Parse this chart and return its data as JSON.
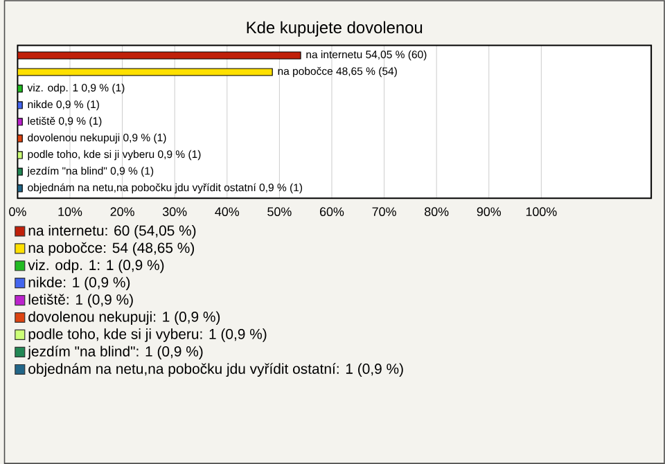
{
  "chart_data": {
    "type": "bar",
    "orientation": "horizontal",
    "title": "Kde kupujete dovolenou",
    "categories": [
      null,
      null,
      null,
      null,
      null,
      null,
      null,
      null,
      null
    ],
    "xlim": [
      0,
      121
    ],
    "xticks": [
      {
        "value": 0,
        "label": "0%"
      },
      {
        "value": 10,
        "label": "10%"
      },
      {
        "value": 20,
        "label": "20%"
      },
      {
        "value": 30,
        "label": "30%"
      },
      {
        "value": 40,
        "label": "40%"
      },
      {
        "value": 50,
        "label": "50%"
      },
      {
        "value": 60,
        "label": "60%"
      },
      {
        "value": 70,
        "label": "70%"
      },
      {
        "value": 80,
        "label": "80%"
      },
      {
        "value": 90,
        "label": "90%"
      },
      {
        "value": 100,
        "label": "100%"
      }
    ],
    "grid": "x",
    "legend": "bottom",
    "tick_labels": "x",
    "series": [
      {
        "name": "na internetu: 60 (54,05 %)",
        "color": "#c0200a",
        "values": [
          54.05,
          null,
          null,
          null,
          null,
          null,
          null,
          null,
          null
        ],
        "value_labels": [
          "na internetu 54,05 % (60)",
          null,
          null,
          null,
          null,
          null,
          null,
          null,
          null
        ]
      },
      {
        "name": "na pobočce: 54 (48,65 %)",
        "color": "#ffe000",
        "values": [
          null,
          48.65,
          null,
          null,
          null,
          null,
          null,
          null,
          null
        ],
        "value_labels": [
          null,
          "na pobočce 48,65 % (54)",
          null,
          null,
          null,
          null,
          null,
          null,
          null
        ]
      },
      {
        "name": "viz. odp. 1: 1 (0,9 %)",
        "color": "#22bb22",
        "values": [
          null,
          null,
          0.9,
          null,
          null,
          null,
          null,
          null,
          null
        ],
        "value_labels": [
          null,
          null,
          "viz. odp. 1 0,9 % (1)",
          null,
          null,
          null,
          null,
          null,
          null
        ]
      },
      {
        "name": "nikde: 1 (0,9 %)",
        "color": "#4466ee",
        "values": [
          null,
          null,
          null,
          0.9,
          null,
          null,
          null,
          null,
          null
        ],
        "value_labels": [
          null,
          null,
          null,
          "nikde 0,9 % (1)",
          null,
          null,
          null,
          null,
          null
        ]
      },
      {
        "name": "letiště: 1 (0,9 %)",
        "color": "#bb22cc",
        "values": [
          null,
          null,
          null,
          null,
          0.9,
          null,
          null,
          null,
          null
        ],
        "value_labels": [
          null,
          null,
          null,
          null,
          "letiště 0,9 % (1)",
          null,
          null,
          null,
          null
        ]
      },
      {
        "name": "dovolenou nekupuji: 1 (0,9 %)",
        "color": "#dd4411",
        "values": [
          null,
          null,
          null,
          null,
          null,
          0.9,
          null,
          null,
          null
        ],
        "value_labels": [
          null,
          null,
          null,
          null,
          null,
          "dovolenou nekupuji 0,9 % (1)",
          null,
          null,
          null
        ]
      },
      {
        "name": "podle toho, kde si ji vyberu: 1 (0,9 %)",
        "color": "#ccff77",
        "values": [
          null,
          null,
          null,
          null,
          null,
          null,
          0.9,
          null,
          null
        ],
        "value_labels": [
          null,
          null,
          null,
          null,
          null,
          null,
          "podle toho, kde si ji vyberu 0,9 % (1)",
          null,
          null
        ]
      },
      {
        "name": "jezdím \"na blind\": 1 (0,9 %)",
        "color": "#228855",
        "values": [
          null,
          null,
          null,
          null,
          null,
          null,
          null,
          0.9,
          null
        ],
        "value_labels": [
          null,
          null,
          null,
          null,
          null,
          null,
          null,
          "jezdím \"na blind\" 0,9 % (1)",
          null
        ]
      },
      {
        "name": "objednám na netu,na pobočku jdu vyřídit ostatní: 1 (0,9 %)",
        "color": "#226688",
        "values": [
          null,
          null,
          null,
          null,
          null,
          null,
          null,
          null,
          0.9
        ],
        "value_labels": [
          null,
          null,
          null,
          null,
          null,
          null,
          null,
          null,
          "objednám na netu,na pobočku jdu vyřídit ostatní 0,9 % (1)"
        ]
      }
    ]
  }
}
